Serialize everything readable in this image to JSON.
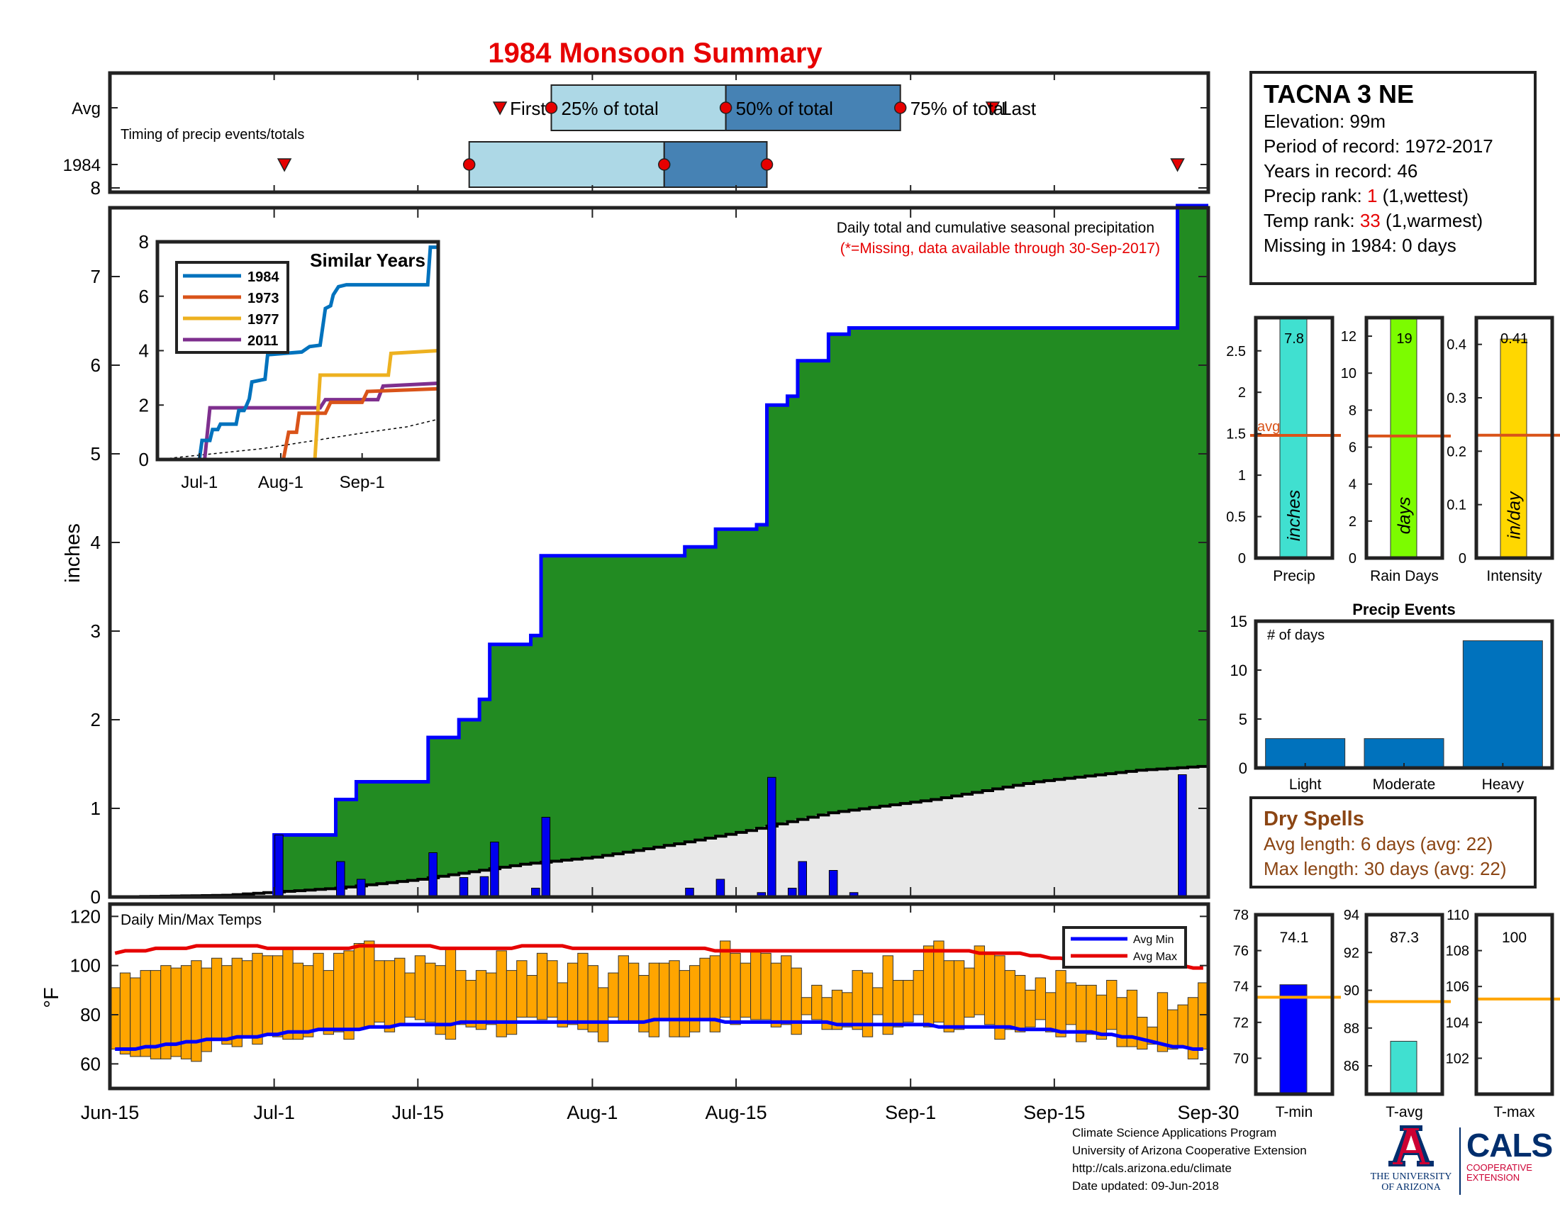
{
  "page": {
    "title": "1984 Monsoon Summary",
    "title_color": "#e60000"
  },
  "station": {
    "name": "TACNA 3 NE",
    "elevation": "Elevation: 99m",
    "period": "Period of record: 1972-2017",
    "years": "Years in record: 46",
    "precip_rank_label": "Precip rank: ",
    "precip_rank_value": "1",
    "precip_rank_note": " (1,wettest)",
    "temp_rank_label": "Temp rank: ",
    "temp_rank_value": "33",
    "temp_rank_note": " (1,warmest)",
    "missing": "Missing in 1984: 0 days"
  },
  "dry_spells": {
    "title": "Dry Spells",
    "avg_length": "Avg length: 6 days (avg: 22)",
    "max_length": "Max length: 30 days (avg: 22)",
    "color": "#8b4513"
  },
  "footer": {
    "line1": "Climate Science Applications Program",
    "line2": "University of Arizona Cooperative Extension",
    "line3": "http://cals.arizona.edu/climate",
    "line4": "Date updated: 09-Jun-2018",
    "logo_ua": "THE UNIVERSITY OF ARIZONA",
    "logo_cals": "CALS",
    "logo_coop": "COOPERATIVE EXTENSION"
  },
  "chart_data": [
    {
      "id": "timing",
      "type": "box-timeline",
      "note": "Timing of precip events/totals",
      "rows": [
        "Avg",
        "1984"
      ],
      "avg": {
        "first": "Jul-23",
        "p25": "Jul-28",
        "p50": "Aug-14",
        "p75": "Aug-31",
        "last": "Sep-09"
      },
      "y1984": {
        "first": "Jul-02",
        "p25": "Jul-20",
        "p50": "Aug-08",
        "p75": "Aug-18",
        "last": "Sep-27"
      },
      "labels": [
        "First",
        "25% of total",
        "50% of total",
        "75% of total",
        "Last"
      ],
      "box_colors": [
        "#add8e6",
        "#4682b4"
      ],
      "marker_color": "#e60000"
    },
    {
      "id": "precip",
      "type": "area",
      "title": "Daily total and cumulative seasonal precipitation",
      "subtitle": "(*=Missing, data available through 30-Sep-2017)",
      "ylabel": "inches",
      "ylim": [
        0,
        8
      ],
      "yticks": [
        0,
        1,
        2,
        3,
        4,
        5,
        6,
        7,
        8
      ],
      "xticks": [
        "Jun-15",
        "Jul-1",
        "Jul-15",
        "Aug-1",
        "Aug-15",
        "Sep-1",
        "Sep-15",
        "Sep-30"
      ],
      "xtick_days": [
        0,
        16,
        30,
        47,
        61,
        78,
        92,
        107
      ],
      "cumulative_steps": [
        [
          0,
          0
        ],
        [
          16,
          0.7
        ],
        [
          22,
          1.1
        ],
        [
          24,
          1.3
        ],
        [
          31,
          1.8
        ],
        [
          34,
          2.0
        ],
        [
          36,
          2.23
        ],
        [
          37,
          2.85
        ],
        [
          41,
          2.95
        ],
        [
          42,
          3.85
        ],
        [
          56,
          3.95
        ],
        [
          59,
          4.15
        ],
        [
          63,
          4.2
        ],
        [
          64,
          5.55
        ],
        [
          66,
          5.65
        ],
        [
          67,
          6.05
        ],
        [
          70,
          6.35
        ],
        [
          72,
          6.42
        ],
        [
          104,
          7.8
        ],
        [
          107,
          7.8
        ]
      ],
      "daily_precip": [
        [
          16,
          0.7
        ],
        [
          22,
          0.4
        ],
        [
          24,
          0.2
        ],
        [
          31,
          0.5
        ],
        [
          34,
          0.22
        ],
        [
          36,
          0.23
        ],
        [
          37,
          0.62
        ],
        [
          41,
          0.1
        ],
        [
          42,
          0.9
        ],
        [
          56,
          0.1
        ],
        [
          59,
          0.2
        ],
        [
          63,
          0.05
        ],
        [
          64,
          1.35
        ],
        [
          66,
          0.1
        ],
        [
          67,
          0.4
        ],
        [
          70,
          0.3
        ],
        [
          72,
          0.05
        ],
        [
          104,
          1.38
        ]
      ],
      "avg_cumulative": [
        [
          0,
          0
        ],
        [
          11,
          0.02
        ],
        [
          15,
          0.05
        ],
        [
          22,
          0.1
        ],
        [
          30,
          0.2
        ],
        [
          40,
          0.37
        ],
        [
          47,
          0.45
        ],
        [
          55,
          0.6
        ],
        [
          62,
          0.75
        ],
        [
          70,
          0.95
        ],
        [
          80,
          1.1
        ],
        [
          90,
          1.3
        ],
        [
          100,
          1.43
        ],
        [
          107,
          1.48
        ]
      ],
      "fill_color": "#228b22",
      "line_color": "#0000ff",
      "avg_fill_color": "#e8e8e8"
    },
    {
      "id": "similar",
      "type": "line",
      "title": "Similar Years",
      "ylim": [
        0,
        8
      ],
      "yticks": [
        0,
        2,
        4,
        6,
        8
      ],
      "xticks": [
        "Jul-1",
        "Aug-1",
        "Sep-1"
      ],
      "xtick_days": [
        16,
        47,
        78
      ],
      "series": [
        {
          "name": "1984",
          "color": "#0072bd",
          "points": [
            [
              0,
              0
            ],
            [
              16,
              0
            ],
            [
              17,
              0.7
            ],
            [
              20,
              0.7
            ],
            [
              21,
              1.1
            ],
            [
              23,
              1.1
            ],
            [
              24,
              1.3
            ],
            [
              30,
              1.3
            ],
            [
              31,
              1.8
            ],
            [
              33,
              1.8
            ],
            [
              34,
              2.0
            ],
            [
              35,
              2.23
            ],
            [
              36,
              2.85
            ],
            [
              41,
              2.95
            ],
            [
              42,
              3.85
            ],
            [
              55,
              3.95
            ],
            [
              58,
              4.15
            ],
            [
              62,
              4.2
            ],
            [
              64,
              5.55
            ],
            [
              66,
              5.65
            ],
            [
              67,
              6.05
            ],
            [
              69,
              6.35
            ],
            [
              72,
              6.42
            ],
            [
              103,
              6.42
            ],
            [
              104,
              7.8
            ],
            [
              107,
              7.8
            ]
          ]
        },
        {
          "name": "1973",
          "color": "#d95319",
          "points": [
            [
              0,
              0
            ],
            [
              48,
              0
            ],
            [
              50,
              1.0
            ],
            [
              53,
              1.0
            ],
            [
              54,
              1.7
            ],
            [
              64,
              1.7
            ],
            [
              66,
              2.1
            ],
            [
              78,
              2.1
            ],
            [
              80,
              2.5
            ],
            [
              107,
              2.6
            ]
          ]
        },
        {
          "name": "1977",
          "color": "#edb120",
          "points": [
            [
              0,
              0
            ],
            [
              60,
              0
            ],
            [
              62,
              3.1
            ],
            [
              88,
              3.1
            ],
            [
              89,
              3.9
            ],
            [
              107,
              4.0
            ]
          ]
        },
        {
          "name": "2011",
          "color": "#7e2f8e",
          "points": [
            [
              0,
              0
            ],
            [
              18,
              0
            ],
            [
              20,
              1.9
            ],
            [
              62,
              1.9
            ],
            [
              64,
              2.2
            ],
            [
              84,
              2.2
            ],
            [
              86,
              2.7
            ],
            [
              107,
              2.8
            ]
          ]
        }
      ],
      "avg_points": [
        [
          0,
          0
        ],
        [
          20,
          0.2
        ],
        [
          40,
          0.4
        ],
        [
          60,
          0.7
        ],
        [
          80,
          1.0
        ],
        [
          95,
          1.2
        ],
        [
          107,
          1.48
        ]
      ]
    },
    {
      "id": "temps",
      "type": "bar",
      "title": "Daily Min/Max Temps",
      "ylabel": "°F",
      "ylim": [
        50,
        125
      ],
      "yticks": [
        60,
        80,
        100,
        120
      ],
      "legend": [
        "Avg Min",
        "Avg Max"
      ],
      "legend_colors": [
        "#0000ff",
        "#e60000"
      ],
      "bar_color": "#ffa500",
      "daily_min": [
        66,
        64,
        63,
        63,
        62,
        62,
        63,
        62,
        61,
        65,
        70,
        68,
        67,
        71,
        68,
        72,
        71,
        70,
        70,
        71,
        74,
        72,
        73,
        70,
        74,
        75,
        77,
        73,
        76,
        79,
        78,
        77,
        72,
        70,
        76,
        75,
        74,
        76,
        71,
        72,
        79,
        79,
        78,
        79,
        75,
        76,
        74,
        73,
        69,
        79,
        77,
        77,
        73,
        71,
        78,
        71,
        71,
        73,
        78,
        73,
        79,
        76,
        79,
        78,
        78,
        75,
        76,
        72,
        80,
        78,
        74,
        74,
        75,
        74,
        71,
        80,
        72,
        75,
        77,
        80,
        75,
        77,
        73,
        74,
        79,
        80,
        76,
        70,
        74,
        73,
        75,
        78,
        73,
        71,
        76,
        69,
        72,
        70,
        74,
        67,
        67,
        66,
        68,
        65,
        66,
        67,
        62,
        66
      ],
      "daily_max": [
        91,
        97,
        95,
        98,
        98,
        100,
        99,
        100,
        102,
        99,
        103,
        100,
        103,
        102,
        105,
        104,
        104,
        107,
        101,
        100,
        105,
        98,
        105,
        106,
        109,
        110,
        102,
        102,
        103,
        97,
        104,
        101,
        100,
        107,
        98,
        94,
        98,
        97,
        106,
        98,
        102,
        96,
        105,
        102,
        93,
        101,
        105,
        100,
        91,
        97,
        104,
        101,
        96,
        101,
        101,
        102,
        98,
        100,
        103,
        104,
        110,
        105,
        101,
        106,
        105,
        101,
        104,
        99,
        87,
        92,
        87,
        90,
        89,
        98,
        97,
        91,
        104,
        94,
        94,
        98,
        108,
        110,
        102,
        102,
        99,
        108,
        105,
        104,
        98,
        96,
        90,
        95,
        89,
        98,
        93,
        92,
        92,
        88,
        94,
        87,
        90,
        79,
        75,
        89,
        82,
        84,
        87,
        93
      ],
      "avg_max": [
        105,
        106,
        106,
        106,
        107,
        107,
        107,
        107,
        108,
        108,
        108,
        108,
        108,
        108,
        108,
        107,
        107,
        107,
        107,
        107,
        107,
        107,
        107,
        107,
        108,
        108,
        108,
        108,
        108,
        108,
        108,
        108,
        107,
        107,
        107,
        107,
        107,
        107,
        107,
        107,
        108,
        108,
        108,
        108,
        108,
        107,
        107,
        107,
        107,
        107,
        107,
        107,
        107,
        107,
        107,
        107,
        107,
        107,
        107,
        106,
        106,
        106,
        106,
        106,
        106,
        106,
        106,
        106,
        106,
        106,
        106,
        106,
        106,
        106,
        106,
        106,
        106,
        106,
        106,
        106,
        106,
        106,
        106,
        106,
        106,
        105,
        105,
        105,
        105,
        105,
        104,
        104,
        103,
        103,
        102,
        102,
        102,
        102,
        101,
        101,
        101,
        101,
        101,
        100,
        100,
        100,
        99,
        99
      ],
      "avg_min": [
        66,
        66,
        66,
        67,
        67,
        68,
        68,
        69,
        69,
        70,
        70,
        70,
        71,
        71,
        71,
        72,
        72,
        73,
        73,
        73,
        74,
        74,
        74,
        74,
        74,
        75,
        75,
        75,
        76,
        76,
        76,
        76,
        76,
        76,
        77,
        77,
        77,
        77,
        77,
        77,
        77,
        77,
        77,
        77,
        77,
        77,
        77,
        77,
        77,
        77,
        77,
        77,
        77,
        78,
        78,
        78,
        78,
        78,
        78,
        78,
        77,
        77,
        77,
        77,
        77,
        77,
        77,
        77,
        77,
        77,
        77,
        76,
        76,
        76,
        76,
        76,
        76,
        76,
        76,
        76,
        76,
        75,
        75,
        75,
        75,
        75,
        75,
        75,
        75,
        74,
        74,
        74,
        74,
        73,
        73,
        73,
        73,
        72,
        72,
        71,
        71,
        70,
        69,
        68,
        67,
        67,
        66,
        66
      ]
    },
    {
      "id": "precip_bars",
      "type": "bar",
      "panels": [
        {
          "label": "Precip",
          "value": 7.8,
          "value_text": "7.8",
          "unit": "inches",
          "avg": 1.48,
          "ylim": [
            0,
            2.9
          ],
          "yticks": [
            0,
            0.5,
            1,
            1.5,
            2,
            2.5
          ],
          "color": "#40e0d0"
        },
        {
          "label": "Rain Days",
          "value": 19,
          "value_text": "19",
          "unit": "days",
          "avg": 6.6,
          "ylim": [
            0,
            13
          ],
          "yticks": [
            0,
            2,
            4,
            6,
            8,
            10,
            12
          ],
          "color": "#7cfc00"
        },
        {
          "label": "Intensity",
          "value": 0.41,
          "value_text": "0.41",
          "unit": "in/day",
          "avg": 0.23,
          "ylim": [
            0,
            0.45
          ],
          "yticks": [
            0,
            0.1,
            0.2,
            0.3,
            0.4
          ],
          "color": "#ffd700"
        }
      ],
      "avg_label": "avg",
      "avg_color": "#d95319"
    },
    {
      "id": "events",
      "type": "bar",
      "title": "Precip Events",
      "note": "# of days",
      "categories": [
        "Light",
        "Moderate",
        "Heavy"
      ],
      "values": [
        3,
        3,
        13
      ],
      "ylim": [
        0,
        15
      ],
      "yticks": [
        0,
        5,
        10,
        15
      ],
      "color": "#0072bd"
    },
    {
      "id": "temp_bars",
      "type": "bar",
      "panels": [
        {
          "label": "T-min",
          "value": 74.1,
          "value_text": "74.1",
          "avg": 73.4,
          "ylim": [
            68,
            78
          ],
          "yticks": [
            70,
            72,
            74,
            76,
            78
          ],
          "color": "#0000ff"
        },
        {
          "label": "T-avg",
          "value": 87.3,
          "value_text": "87.3",
          "avg": 89.4,
          "ylim": [
            84.5,
            94
          ],
          "yticks": [
            86,
            88,
            90,
            92,
            94
          ],
          "color": "#40e0d0"
        },
        {
          "label": "T-max",
          "value": 100,
          "value_text": "100",
          "avg": 105.3,
          "ylim": [
            100,
            110
          ],
          "yticks": [
            102,
            104,
            106,
            108,
            110
          ],
          "color": "#e60000"
        }
      ],
      "avg_color": "#ffa500"
    }
  ]
}
